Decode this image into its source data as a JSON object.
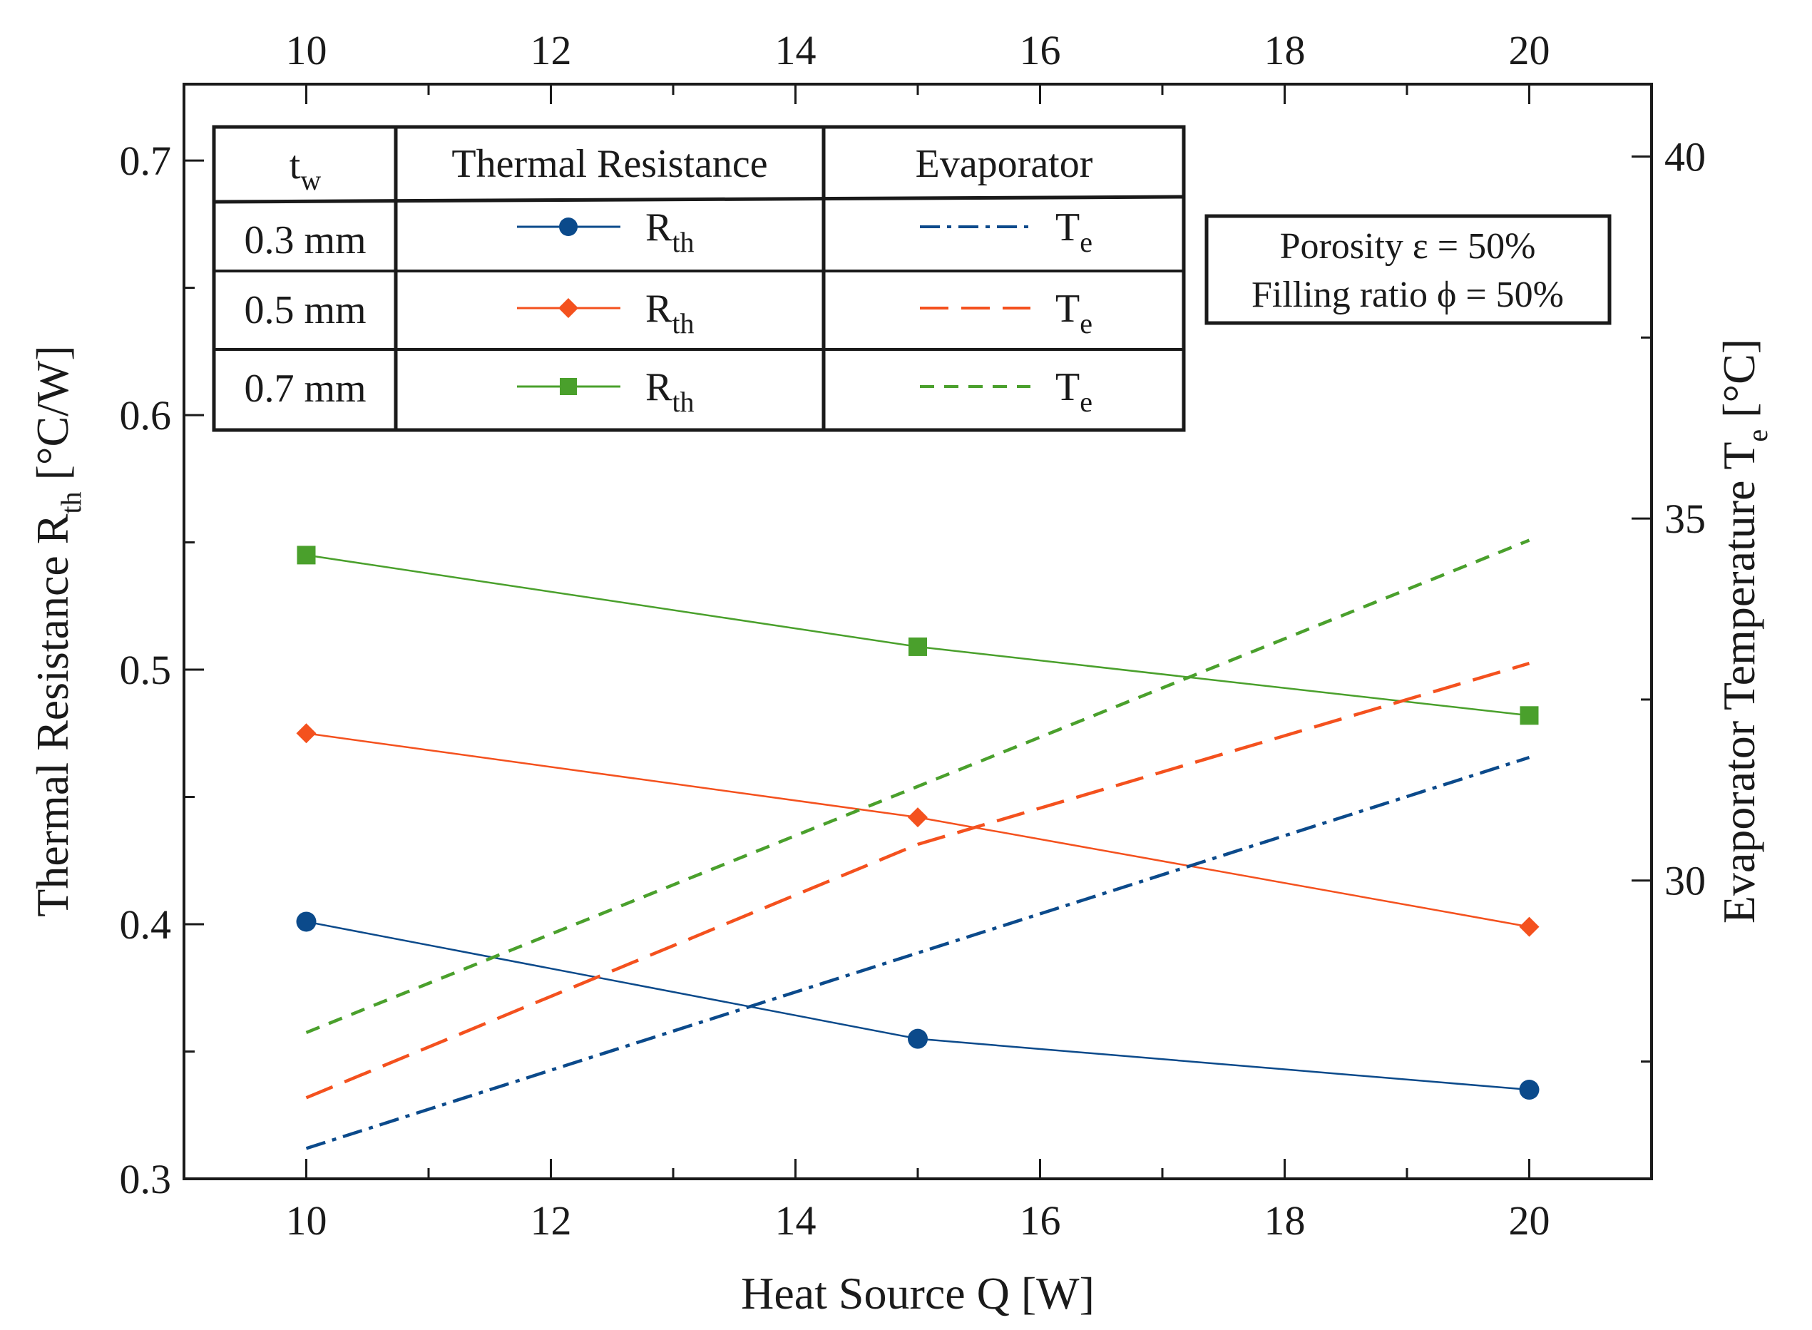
{
  "chart_data": {
    "type": "line",
    "x_axis": {
      "label": "Heat Source Q [W]",
      "range": [
        9,
        21
      ],
      "ticks": [
        10,
        12,
        14,
        16,
        18,
        20
      ],
      "tick_labels": [
        "10",
        "12",
        "14",
        "16",
        "18",
        "20"
      ],
      "minor_ticks": [
        9,
        11,
        13,
        15,
        17,
        19,
        21
      ]
    },
    "y_left": {
      "label": "Thermal Resistance R",
      "label_sub": "th",
      "label_unit": " [°C/W]",
      "range": [
        0.3,
        0.73
      ],
      "ticks": [
        0.3,
        0.4,
        0.5,
        0.6,
        0.7
      ],
      "tick_labels": [
        "0.3",
        "0.4",
        "0.5",
        "0.6",
        "0.7"
      ],
      "minor_ticks": [
        0.35,
        0.45,
        0.55,
        0.65
      ]
    },
    "y_right": {
      "label": "Evaporator Temperature T",
      "label_sub": "e",
      "label_unit": " [°C]",
      "range": [
        25.88,
        41.0
      ],
      "ticks": [
        30,
        35,
        40
      ],
      "tick_labels": [
        "30",
        "35",
        "40"
      ],
      "minor_ticks": [
        27.5,
        32.5,
        37.5
      ]
    },
    "series": [
      {
        "name": "Rth 0.3 mm",
        "axis": "left",
        "color": "#0b4a8b",
        "marker": "circle",
        "dash": "",
        "x": [
          10,
          15,
          20
        ],
        "y": [
          0.401,
          0.355,
          0.335
        ]
      },
      {
        "name": "Rth 0.5 mm",
        "axis": "left",
        "color": "#f4511e",
        "marker": "diamond",
        "dash": "",
        "x": [
          10,
          15,
          20
        ],
        "y": [
          0.475,
          0.442,
          0.399
        ]
      },
      {
        "name": "Rth 0.7 mm",
        "axis": "left",
        "color": "#4aa02c",
        "marker": "square",
        "dash": "",
        "x": [
          10,
          15,
          20
        ],
        "y": [
          0.545,
          0.509,
          0.482
        ]
      },
      {
        "name": "Te 0.3 mm",
        "axis": "right",
        "color": "#0b4a8b",
        "marker": "none",
        "dash": "28,10,6,10",
        "x": [
          10,
          15,
          20
        ],
        "y": [
          26.3,
          29.0,
          31.7
        ]
      },
      {
        "name": "Te 0.5 mm",
        "axis": "right",
        "color": "#f4511e",
        "marker": "none",
        "dash": "40,18",
        "x": [
          10,
          15,
          20
        ],
        "y": [
          27.0,
          30.5,
          33.0
        ]
      },
      {
        "name": "Te 0.7 mm",
        "axis": "right",
        "color": "#4aa02c",
        "marker": "none",
        "dash": "20,14",
        "x": [
          10,
          15,
          20
        ],
        "y": [
          27.9,
          31.3,
          34.7
        ]
      }
    ],
    "legend": {
      "placement": "top-left",
      "header": {
        "col1": "t",
        "col1_sub": "w",
        "col2": "Thermal Resistance",
        "col3": "Evaporator"
      },
      "rows": [
        {
          "tw": "0.3 mm",
          "rth": "R",
          "rth_sub": "th",
          "te": "T",
          "te_sub": "e"
        },
        {
          "tw": "0.5 mm",
          "rth": "R",
          "rth_sub": "th",
          "te": "T",
          "te_sub": "e"
        },
        {
          "tw": "0.7 mm",
          "rth": "R",
          "rth_sub": "th",
          "te": "T",
          "te_sub": "e"
        }
      ]
    },
    "annotation": {
      "placement": "top-right",
      "line1": "Porosity ε = 50%",
      "line2": "Filling ratio ϕ = 50%"
    }
  }
}
